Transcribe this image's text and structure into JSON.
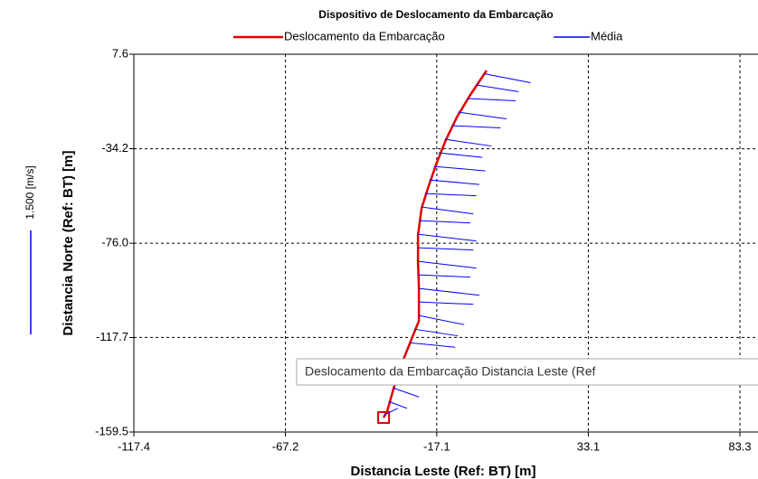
{
  "chart_data": {
    "type": "track",
    "title": "Dispositivo de Deslocamento da Embarcação",
    "x_label": "Distancia Leste (Ref: BT) [m]",
    "y_label": "Distancia Norte (Ref: BT) [m]",
    "scale_label": "1.500 [m/s]",
    "tooltip": "Deslocamento da Embarcação Distancia Leste (Ref",
    "xlim": [
      -117.4,
      83.3
    ],
    "ylim": [
      -159.5,
      7.6
    ],
    "xticks": [
      -117.4,
      -67.2,
      -17.1,
      33.1,
      83.3
    ],
    "yticks": [
      7.6,
      -34.2,
      {
        "value": -76,
        "label": "-76.0"
      },
      -117.7,
      -159.5
    ],
    "grid": true,
    "series": [
      {
        "name": "Deslocamento da Embarcação",
        "color": "#e00000",
        "x": [
          -0.6,
          -6.0,
          -10.5,
          -14.1,
          -17.1,
          -19.7,
          -22.1,
          -23.3,
          -23.3,
          -23.0,
          -23.0,
          -25.4,
          -28.4,
          -31.4,
          -33.5,
          -34.7
        ],
        "y": [
          0.4,
          -10.4,
          -20.4,
          -30.4,
          -40.4,
          -50.4,
          -60.4,
          -72.4,
          -84.3,
          -96.3,
          -110.3,
          -118.3,
          -128.3,
          -140.3,
          -150.3,
          -153.1
        ]
      },
      {
        "name": "Média",
        "color": "#0000ff",
        "x": [
          -1.5,
          -4,
          -7,
          -10,
          -12,
          -14.5,
          -16.5,
          -18,
          -19.5,
          -21,
          -22,
          -23,
          -23.3,
          -23.3,
          -23.3,
          -23.2,
          -23,
          -23,
          -23,
          -24.5,
          -26,
          -28,
          -30,
          -31.5,
          -33,
          -34.5
        ],
        "y": [
          -1,
          -6,
          -12,
          -18,
          -24,
          -30,
          -36,
          -42,
          -48,
          -54,
          -60,
          -66,
          -72,
          -78,
          -84,
          -90,
          -96,
          -102,
          -108,
          -114,
          -120,
          -127,
          -134,
          -140,
          -146,
          -152
        ],
        "x_end": [
          14,
          10,
          9,
          6,
          4,
          1,
          -2,
          -1,
          -3,
          -4,
          -5,
          -6,
          -4,
          -5,
          -4,
          -6,
          -3,
          -5,
          -8,
          -10,
          -11,
          -14,
          -20,
          -23,
          -27,
          -30
        ],
        "y_end": [
          -5,
          -9,
          -13,
          -21,
          -25,
          -33,
          -38,
          -44,
          -50,
          -55,
          -63,
          -67,
          -75,
          -79,
          -87,
          -91,
          -99,
          -103,
          -112,
          -117,
          -122,
          -130,
          -138,
          -144,
          -149,
          -149
        ]
      }
    ]
  }
}
